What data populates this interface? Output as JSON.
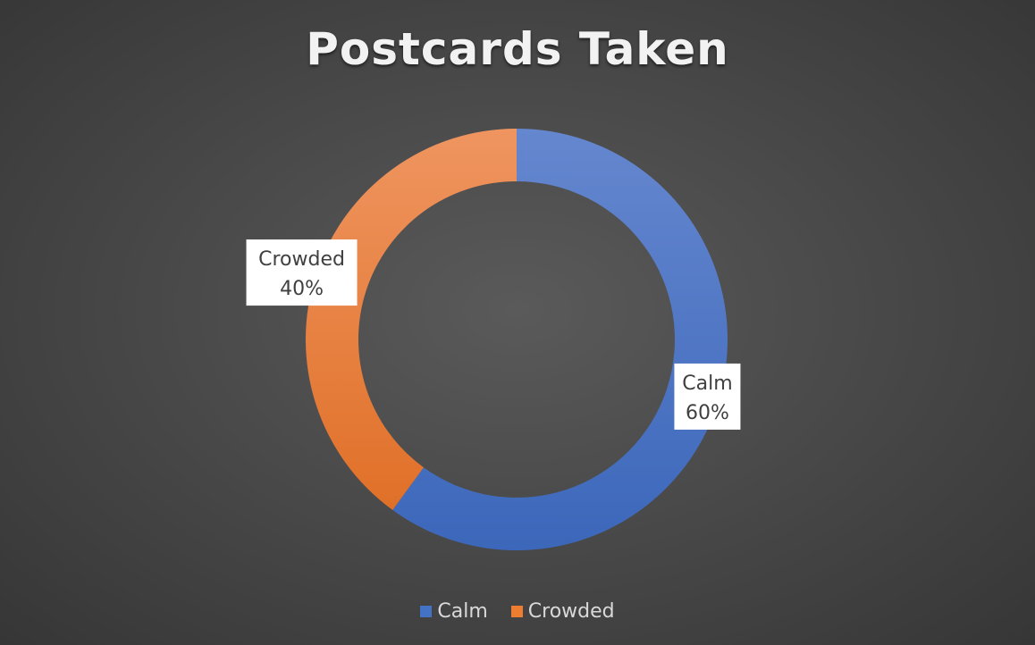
{
  "chart_data": {
    "type": "pie",
    "variant": "doughnut",
    "title": "Postcards Taken",
    "slices": [
      {
        "label": "Calm",
        "value": 60,
        "value_label": "60%",
        "color": "#4472c4"
      },
      {
        "label": "Crowded",
        "value": 40,
        "value_label": "40%",
        "color": "#ed7d31"
      }
    ],
    "legend": {
      "position": "bottom",
      "entries": [
        "Calm",
        "Crowded"
      ]
    },
    "background_color": "#4a4a4a"
  }
}
